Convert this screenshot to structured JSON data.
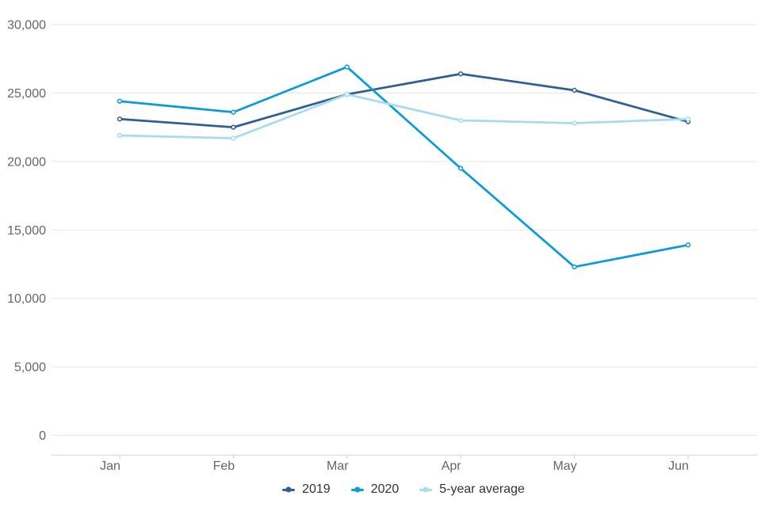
{
  "chart_data": {
    "type": "line",
    "categories": [
      "Jan",
      "Feb",
      "Mar",
      "Apr",
      "May",
      "Jun"
    ],
    "series": [
      {
        "name": "2019",
        "color": "#2F5F96",
        "values": [
          23100,
          22500,
          24900,
          26400,
          25200,
          22900
        ]
      },
      {
        "name": "2020",
        "color": "#0A9BDC",
        "values": [
          24400,
          23600,
          26900,
          19500,
          12300,
          13900
        ]
      },
      {
        "name": "5-year average",
        "color": "#A5DCF2",
        "values": [
          21900,
          21700,
          24900,
          23000,
          22800,
          23100
        ]
      }
    ],
    "title": "",
    "xlabel": "",
    "ylabel": "",
    "ylim": [
      0,
      30000
    ],
    "ytick_interval": 5000,
    "ytick_labels": [
      "0",
      "5,000",
      "10,000",
      "15,000",
      "20,000",
      "25,000",
      "30,000"
    ],
    "grid": true,
    "legend_position": "bottom-center"
  },
  "colors": {
    "background": "#FFFFFF",
    "gridline": "#E6E6E6",
    "axis_line": "#D8D8D8",
    "tick_mark": "#CCCCCC",
    "axis_label_text": "#666666",
    "legend_text": "#333333"
  }
}
